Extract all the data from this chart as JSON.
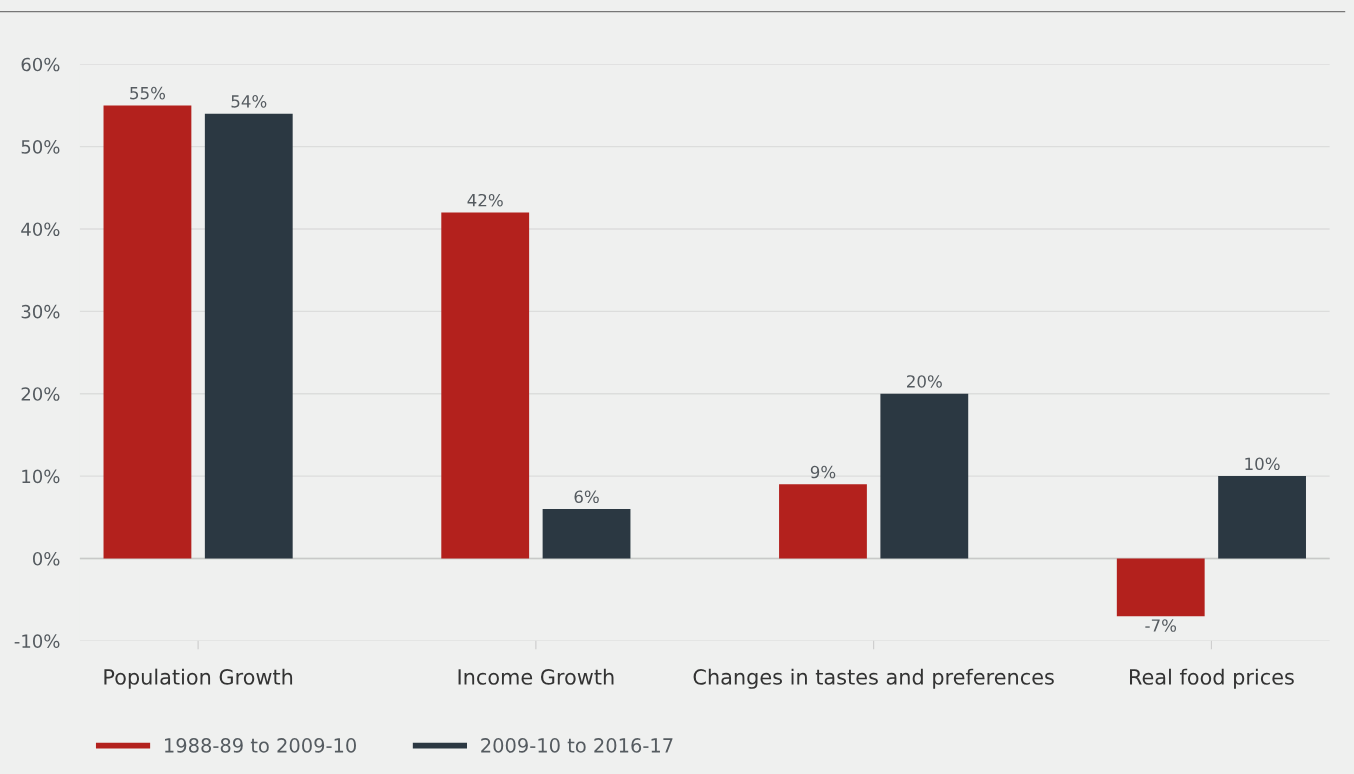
{
  "chart_data": {
    "type": "bar",
    "categories": [
      "Population Growth",
      "Income Growth",
      "Changes in tastes and preferences",
      "Real food prices"
    ],
    "series": [
      {
        "name": "1988-89 to 2009-10",
        "color": "#b3211d",
        "values": [
          55,
          42,
          9,
          -7
        ],
        "value_labels": [
          "55%",
          "42%",
          "9%",
          "-7%"
        ]
      },
      {
        "name": "2009-10 to 2016-17",
        "color": "#2b3842",
        "values": [
          54,
          6,
          20,
          10
        ],
        "value_labels": [
          "54%",
          "6%",
          "20%",
          "10%"
        ]
      }
    ],
    "ylim": [
      -10,
      60
    ],
    "yticks": [
      {
        "value": -10,
        "label": "-10%"
      },
      {
        "value": 0,
        "label": "0%"
      },
      {
        "value": 10,
        "label": "10%"
      },
      {
        "value": 20,
        "label": "20%"
      },
      {
        "value": 30,
        "label": "30%"
      },
      {
        "value": 40,
        "label": "40%"
      },
      {
        "value": 50,
        "label": "50%"
      },
      {
        "value": 60,
        "label": "60%"
      }
    ],
    "grid": "y",
    "legend": "bottom left"
  }
}
